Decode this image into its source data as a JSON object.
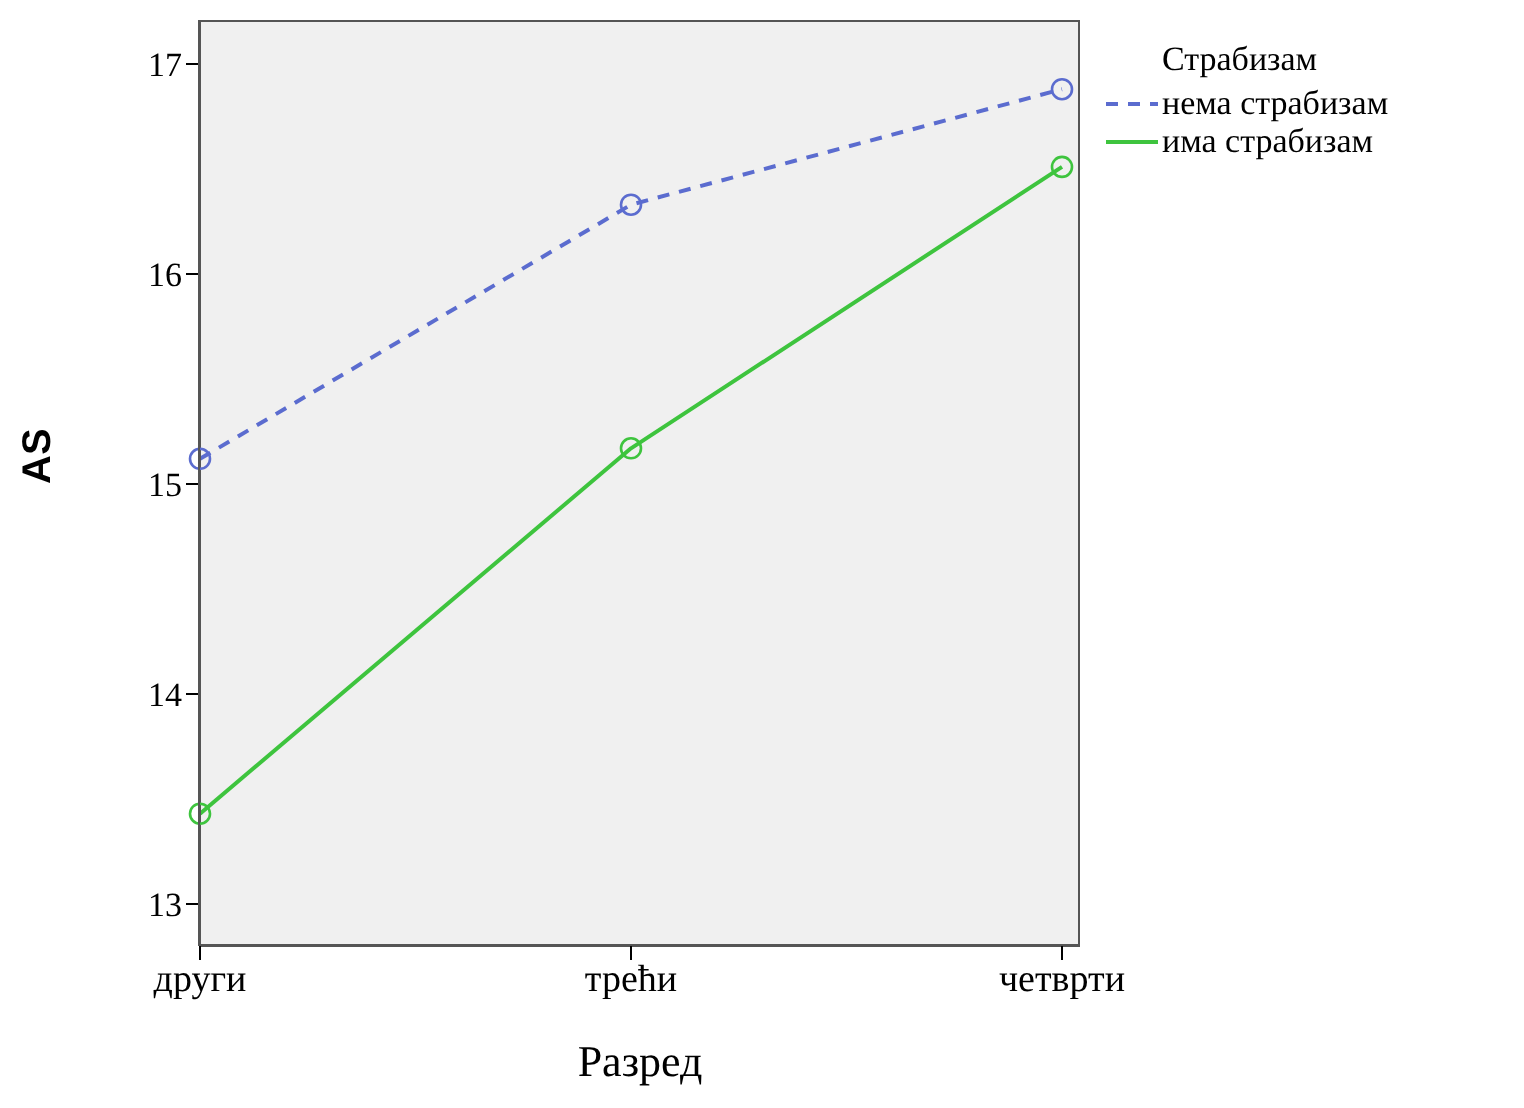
{
  "chart_data": {
    "type": "line",
    "xlabel": "Разред",
    "ylabel": "AS",
    "legend_title": "Страбизам",
    "categories": [
      "други",
      "трећи",
      "четврти"
    ],
    "series": [
      {
        "name": "нема страбизам",
        "color": "#5b6ccf",
        "values": [
          15.12,
          16.33,
          16.88
        ],
        "line_style": "dashed"
      },
      {
        "name": "има страбизам",
        "color": "#3ec43e",
        "values": [
          13.43,
          15.17,
          16.51
        ],
        "line_style": "solid"
      }
    ],
    "ylim": [
      12.8,
      17.2
    ],
    "yticks": [
      13,
      14,
      15,
      16,
      17
    ],
    "grid": false,
    "legend": "top right",
    "marker": "circle"
  }
}
